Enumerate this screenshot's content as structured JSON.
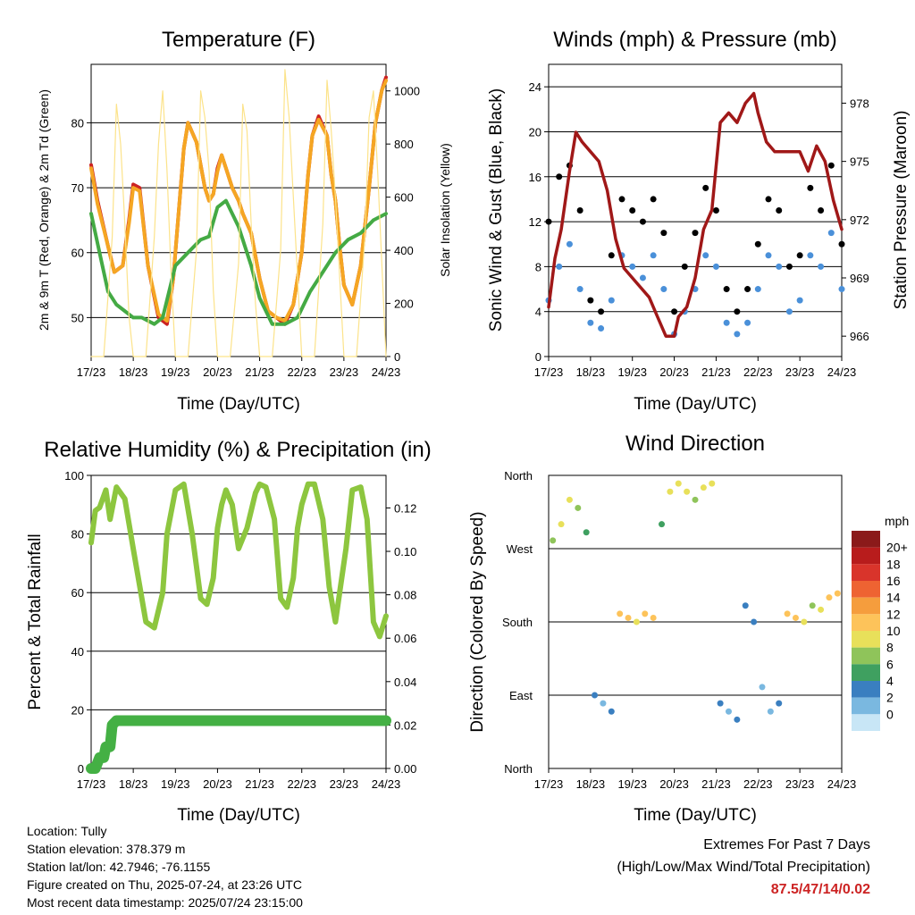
{
  "station_info": {
    "location": "Location: Tully",
    "elevation": "Station elevation: 378.379 m",
    "latlon": "Station lat/lon: 42.7946; -76.1155",
    "created": "Figure created on Thu, 2025-07-24, at 23:26 UTC",
    "recent": "Most recent data timestamp: 2025/07/24 23:15:00"
  },
  "extremes": {
    "title": "Extremes For Past 7 Days",
    "subtitle": "(High/Low/Max Wind/Total Precipitation)",
    "values": "87.5/47/14/0.02",
    "color": "#cc2222"
  },
  "chart_data": [
    {
      "type": "line",
      "title": "Temperature (F)",
      "xlabel": "Time (Day/UTC)",
      "ylabel": "2m & 9m T (Red, Orange) & 2m Td (Green)",
      "y2label": "Solar Insolation (Yellow)",
      "x_ticks": [
        "17/23",
        "18/23",
        "19/23",
        "20/23",
        "21/23",
        "22/23",
        "23/23",
        "24/23"
      ],
      "ylim": [
        44,
        89
      ],
      "y_ticks": [
        50,
        60,
        70,
        80
      ],
      "y2lim": [
        0,
        1100
      ],
      "y2_ticks": [
        0,
        200,
        400,
        600,
        800,
        1000
      ],
      "grid": true,
      "series": [
        {
          "name": "2m T",
          "color": "#cc2222",
          "axis": "left",
          "x": [
            0,
            0.15,
            0.4,
            0.55,
            0.75,
            0.9,
            1.0,
            1.15,
            1.35,
            1.6,
            1.8,
            1.95,
            2.1,
            2.2,
            2.3,
            2.5,
            2.7,
            2.8,
            2.9,
            3.0,
            3.1,
            3.2,
            3.35,
            3.5,
            3.6,
            3.8,
            4.0,
            4.2,
            4.4,
            4.6,
            4.8,
            5.0,
            5.15,
            5.25,
            5.4,
            5.6,
            5.7,
            5.8,
            5.9,
            6.0,
            6.2,
            6.4,
            6.6,
            6.75,
            6.9,
            7.0
          ],
          "y": [
            73.5,
            68,
            61,
            57,
            58,
            65,
            70.5,
            70,
            58,
            50,
            49,
            56,
            68,
            76,
            80,
            77,
            70,
            68,
            69,
            73,
            75,
            73,
            70,
            68,
            66,
            63,
            56,
            51,
            50,
            49,
            52,
            60,
            72,
            78,
            81,
            78,
            72,
            68,
            61,
            55,
            52,
            58,
            70,
            80,
            85,
            87
          ]
        },
        {
          "name": "9m T",
          "color": "#f5a623",
          "axis": "left",
          "x": [
            0,
            0.15,
            0.4,
            0.55,
            0.75,
            0.9,
            1.0,
            1.15,
            1.35,
            1.6,
            1.8,
            1.95,
            2.1,
            2.2,
            2.3,
            2.5,
            2.7,
            2.8,
            2.9,
            3.0,
            3.1,
            3.2,
            3.35,
            3.5,
            3.6,
            3.8,
            4.0,
            4.2,
            4.4,
            4.6,
            4.8,
            5.0,
            5.15,
            5.25,
            5.4,
            5.6,
            5.7,
            5.8,
            5.9,
            6.0,
            6.2,
            6.4,
            6.6,
            6.75,
            6.9,
            7.0
          ],
          "y": [
            73,
            67.5,
            61,
            57,
            58,
            64.5,
            70,
            69.5,
            58,
            50.5,
            49.5,
            56,
            68,
            76,
            80,
            77,
            70,
            68,
            69,
            72.5,
            75,
            73,
            70,
            68,
            66,
            63,
            56,
            51,
            50,
            49.5,
            52,
            60,
            72,
            78,
            80.5,
            78,
            72,
            68,
            61,
            55,
            52,
            58,
            70,
            80,
            85,
            86.5
          ]
        },
        {
          "name": "2m Td",
          "color": "#44aa44",
          "axis": "left",
          "x": [
            0,
            0.2,
            0.4,
            0.6,
            0.8,
            1.0,
            1.2,
            1.5,
            1.7,
            2.0,
            2.3,
            2.6,
            2.8,
            3.0,
            3.2,
            3.5,
            3.8,
            4.0,
            4.3,
            4.6,
            4.9,
            5.2,
            5.5,
            5.8,
            6.1,
            6.4,
            6.7,
            7.0
          ],
          "y": [
            66,
            60,
            54,
            52,
            51,
            50,
            50,
            49,
            50,
            58,
            60,
            62,
            62.5,
            67,
            68,
            64,
            58,
            53,
            49,
            49,
            50,
            54,
            57,
            60,
            62,
            63,
            65,
            66
          ]
        },
        {
          "name": "Solar Insolation",
          "color": "#fce38a",
          "axis": "right",
          "x": [
            0,
            0.3,
            0.5,
            0.6,
            0.7,
            0.8,
            0.9,
            1.0,
            1.3,
            1.5,
            1.6,
            1.7,
            1.8,
            1.9,
            2.0,
            2.3,
            2.5,
            2.6,
            2.7,
            2.8,
            2.9,
            3.0,
            3.3,
            3.5,
            3.6,
            3.7,
            3.8,
            3.9,
            4.0,
            4.3,
            4.5,
            4.6,
            4.7,
            4.8,
            4.9,
            5.0,
            5.3,
            5.5,
            5.6,
            5.7,
            5.8,
            5.9,
            6.0,
            6.3,
            6.5,
            6.6,
            6.7,
            6.8,
            6.9,
            7.0
          ],
          "y": [
            0,
            0,
            450,
            950,
            800,
            500,
            150,
            0,
            0,
            450,
            800,
            1000,
            700,
            300,
            0,
            0,
            400,
            1000,
            900,
            700,
            250,
            0,
            0,
            350,
            950,
            850,
            500,
            200,
            0,
            0,
            400,
            1080,
            900,
            600,
            300,
            0,
            0,
            500,
            1040,
            850,
            600,
            300,
            0,
            0,
            450,
            900,
            1000,
            700,
            350,
            0
          ]
        }
      ]
    },
    {
      "type": "scatter",
      "title": "Winds (mph) & Pressure (mb)",
      "xlabel": "Time (Day/UTC)",
      "ylabel": "Sonic Wind & Gust (Blue, Black)",
      "y2label": "Station Pressure (Maroon)",
      "x_ticks": [
        "17/23",
        "18/23",
        "19/23",
        "20/23",
        "21/23",
        "22/23",
        "23/23",
        "24/23"
      ],
      "ylim": [
        0,
        26
      ],
      "y_ticks": [
        0,
        4,
        8,
        12,
        16,
        20,
        24
      ],
      "y2lim": [
        964.95,
        980
      ],
      "y2_ticks": [
        966,
        969,
        972,
        975,
        978
      ],
      "grid": true,
      "series": [
        {
          "name": "Sonic Wind",
          "color": "#4a90d9",
          "axis": "left",
          "x": [
            0,
            0.25,
            0.5,
            0.75,
            1.0,
            1.25,
            1.5,
            1.75,
            2.0,
            2.25,
            2.5,
            2.75,
            3.0,
            3.25,
            3.5,
            3.75,
            4.0,
            4.25,
            4.5,
            4.75,
            5.0,
            5.25,
            5.5,
            5.75,
            6.0,
            6.25,
            6.5,
            6.75,
            7.0
          ],
          "y": [
            5,
            8,
            10,
            6,
            3,
            2.5,
            5,
            9,
            8,
            7,
            9,
            6,
            2,
            4,
            6,
            9,
            8,
            3,
            2,
            3,
            6,
            9,
            8,
            4,
            5,
            9,
            8,
            11,
            6
          ]
        },
        {
          "name": "Gust",
          "color": "#000000",
          "axis": "left",
          "x": [
            0,
            0.25,
            0.5,
            0.75,
            1.0,
            1.25,
            1.5,
            1.75,
            2.0,
            2.25,
            2.5,
            2.75,
            3.0,
            3.25,
            3.5,
            3.75,
            4.0,
            4.25,
            4.5,
            4.75,
            5.0,
            5.25,
            5.5,
            5.75,
            6.0,
            6.25,
            6.5,
            6.75,
            7.0
          ],
          "y": [
            12,
            16,
            17,
            13,
            5,
            4,
            9,
            14,
            13,
            12,
            14,
            11,
            4,
            8,
            11,
            15,
            13,
            6,
            4,
            6,
            10,
            14,
            13,
            8,
            9,
            15,
            13,
            17,
            10
          ]
        },
        {
          "name": "Station Pressure",
          "color": "#a01818",
          "axis": "right",
          "x": [
            0,
            0.15,
            0.3,
            0.5,
            0.65,
            0.8,
            1.0,
            1.2,
            1.4,
            1.6,
            1.8,
            2.0,
            2.2,
            2.4,
            2.6,
            2.8,
            3.0,
            3.1,
            3.3,
            3.5,
            3.7,
            3.9,
            4.1,
            4.3,
            4.5,
            4.7,
            4.9,
            5.0,
            5.2,
            5.4,
            5.6,
            5.8,
            6.0,
            6.2,
            6.4,
            6.6,
            6.8,
            7.0
          ],
          "y": [
            967.5,
            970,
            971.5,
            974.5,
            976.5,
            976,
            975.5,
            975,
            973.5,
            971,
            969.5,
            969,
            968.5,
            968,
            967,
            966,
            966,
            967,
            967.5,
            969,
            971.5,
            972.5,
            977,
            977.5,
            977,
            978,
            978.5,
            977.5,
            976,
            975.5,
            975.5,
            975.5,
            975.5,
            974.5,
            975.8,
            975,
            973,
            971.5
          ]
        }
      ]
    },
    {
      "type": "line",
      "title": "Relative Humidity (%) & Precipitation (in)",
      "xlabel": "Time (Day/UTC)",
      "ylabel": "Percent & Total Rainfall",
      "x_ticks": [
        "17/23",
        "18/23",
        "19/23",
        "20/23",
        "21/23",
        "22/23",
        "23/23",
        "24/23"
      ],
      "ylim": [
        0,
        100
      ],
      "y_ticks": [
        0,
        20,
        40,
        60,
        80,
        100
      ],
      "y2lim": [
        0,
        0.135
      ],
      "y2_ticks": [
        "0.00",
        "0.02",
        "0.04",
        "0.06",
        "0.08",
        "0.10",
        "0.12"
      ],
      "grid": true,
      "series": [
        {
          "name": "Relative Humidity",
          "color": "#8dc63f",
          "axis": "left",
          "x": [
            0,
            0.1,
            0.2,
            0.35,
            0.45,
            0.6,
            0.8,
            1.0,
            1.3,
            1.5,
            1.7,
            1.8,
            2.0,
            2.2,
            2.4,
            2.6,
            2.75,
            2.9,
            3.0,
            3.1,
            3.2,
            3.35,
            3.5,
            3.7,
            3.9,
            4.0,
            4.15,
            4.35,
            4.5,
            4.65,
            4.8,
            4.9,
            5.0,
            5.15,
            5.3,
            5.5,
            5.65,
            5.8,
            5.9,
            6.05,
            6.2,
            6.4,
            6.55,
            6.7,
            6.85,
            7.0
          ],
          "y": [
            77,
            88,
            89,
            95,
            85,
            96,
            92,
            75,
            50,
            48,
            60,
            80,
            95,
            97,
            80,
            58,
            56,
            65,
            82,
            90,
            95,
            90,
            75,
            82,
            94,
            97,
            96,
            85,
            58,
            55,
            65,
            82,
            90,
            97,
            97,
            85,
            62,
            50,
            60,
            75,
            95,
            96,
            85,
            50,
            45,
            52
          ]
        },
        {
          "name": "Total Precipitation",
          "color": "#44b044",
          "axis": "right",
          "x": [
            0,
            0.1,
            0.2,
            0.3,
            0.35,
            0.45,
            0.5,
            0.6,
            0.7,
            7.0
          ],
          "y": [
            0,
            0,
            0.005,
            0.005,
            0.01,
            0.01,
            0.02,
            0.022,
            0.022,
            0.022
          ]
        }
      ]
    },
    {
      "type": "scatter",
      "title": "Wind Direction",
      "xlabel": "Time (Day/UTC)",
      "ylabel": "Direction (Colored By Speed)",
      "x_ticks": [
        "17/23",
        "18/23",
        "19/23",
        "20/23",
        "21/23",
        "22/23",
        "23/23",
        "24/23"
      ],
      "y_ticks": [
        "North",
        "East",
        "South",
        "West",
        "North"
      ],
      "ylim": [
        0,
        360
      ],
      "grid": true,
      "legend": {
        "title": "mph",
        "labels": [
          "20+",
          "18",
          "16",
          "14",
          "12",
          "10",
          "8",
          "6",
          "4",
          "2",
          "0"
        ],
        "colors": [
          "#8b1a1a",
          "#b81c1c",
          "#d9342b",
          "#ee6332",
          "#f59d3d",
          "#fdc35a",
          "#e8e05a",
          "#8fc45a",
          "#3fa060",
          "#3a7fc0",
          "#7ab8e0",
          "#c8e6f6"
        ]
      },
      "series": [
        {
          "name": "Wind Direction",
          "color": "#4a90d9",
          "x": [
            0.1,
            0.3,
            0.5,
            0.7,
            0.9,
            1.1,
            1.3,
            1.5,
            1.7,
            1.9,
            2.1,
            2.3,
            2.5,
            2.7,
            2.9,
            3.1,
            3.3,
            3.5,
            3.7,
            3.9,
            4.1,
            4.3,
            4.5,
            4.7,
            4.9,
            5.1,
            5.3,
            5.5,
            5.7,
            5.9,
            6.1,
            6.3,
            6.5,
            6.7,
            6.9
          ],
          "y": [
            280,
            300,
            330,
            320,
            290,
            90,
            80,
            70,
            190,
            185,
            180,
            190,
            185,
            300,
            340,
            350,
            340,
            330,
            345,
            350,
            80,
            70,
            60,
            200,
            180,
            100,
            70,
            80,
            190,
            185,
            180,
            200,
            195,
            210,
            215
          ],
          "speed": [
            8,
            9,
            10,
            8,
            5,
            3,
            2,
            3,
            12,
            11,
            10,
            12,
            11,
            6,
            9,
            10,
            9,
            8,
            10,
            9,
            3,
            2,
            3,
            4,
            3,
            2,
            2,
            3,
            12,
            11,
            10,
            8,
            9,
            12,
            11
          ]
        }
      ]
    }
  ]
}
